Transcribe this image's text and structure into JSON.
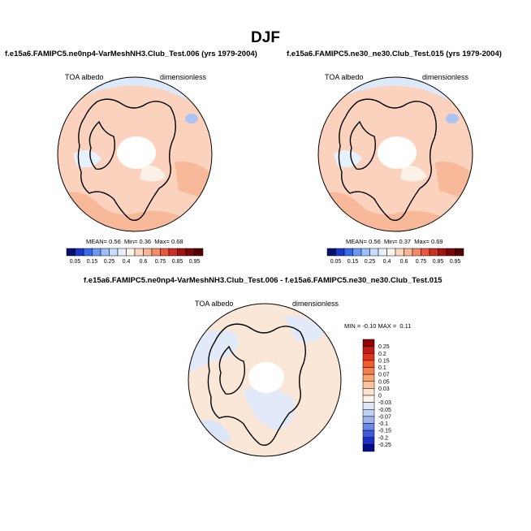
{
  "title": "DJF",
  "panels": [
    {
      "case_title": "f.e15a6.FAMIPC5.ne0np4-VarMeshNH3.Club_Test.006 (yrs 1979-2004)",
      "left_label": "TOA albedo",
      "right_label": "dimensionless",
      "stats": {
        "mean_label": "MEAN=",
        "mean": "0.56",
        "min_label": "Min=",
        "min": "0.36",
        "max_label": "Max=",
        "max": "0.68"
      }
    },
    {
      "case_title": "f.e15a6.FAMIPC5.ne30_ne30.Club_Test.015 (yrs 1979-2004)",
      "left_label": "TOA albedo",
      "right_label": "dimensionless",
      "stats": {
        "mean_label": "MEAN=",
        "mean": "0.56",
        "min_label": "Min=",
        "min": "0.37",
        "max_label": "Max=",
        "max": "0.69"
      }
    },
    {
      "case_title": "f.e15a6.FAMIPC5.ne0np4-VarMeshNH3.Club_Test.006 - f.e15a6.FAMIPC5.ne30_ne30.Club_Test.015",
      "left_label": "TOA albedo",
      "right_label": "dimensionless",
      "stats": {
        "min_label": "MIN =",
        "min": "-0.10",
        "max_label": "MAX =",
        "max": "0.11"
      }
    }
  ],
  "chart_data": [
    {
      "type": "heatmap",
      "projection": "north-polar-stereographic",
      "variable": "TOA albedo",
      "units": "dimensionless",
      "mean": 0.56,
      "min": 0.36,
      "max": 0.68,
      "colorbar": {
        "orientation": "horizontal",
        "labels": [
          "0.05",
          "0.15",
          "0.25",
          "0.4",
          "0.6",
          "0.75",
          "0.85",
          "0.95"
        ],
        "levels": [
          0.05,
          0.1,
          0.15,
          0.2,
          0.25,
          0.3,
          0.4,
          0.5,
          0.6,
          0.7,
          0.75,
          0.8,
          0.85,
          0.9,
          0.95
        ],
        "colors": [
          "#05106e",
          "#1a38c8",
          "#3a6aea",
          "#6a9af5",
          "#9cc1fa",
          "#c6dcfc",
          "#e7f0fd",
          "#fff4ec",
          "#fdd6bf",
          "#f9b595",
          "#f48a6a",
          "#e9573f",
          "#cf2f23",
          "#a4140f",
          "#7a0707",
          "#560000"
        ]
      }
    },
    {
      "type": "heatmap",
      "projection": "north-polar-stereographic",
      "variable": "TOA albedo",
      "units": "dimensionless",
      "mean": 0.56,
      "min": 0.37,
      "max": 0.69,
      "colorbar": {
        "orientation": "horizontal",
        "labels": [
          "0.05",
          "0.15",
          "0.25",
          "0.4",
          "0.6",
          "0.75",
          "0.85",
          "0.95"
        ],
        "levels": [
          0.05,
          0.1,
          0.15,
          0.2,
          0.25,
          0.3,
          0.4,
          0.5,
          0.6,
          0.7,
          0.75,
          0.8,
          0.85,
          0.9,
          0.95
        ],
        "colors": [
          "#05106e",
          "#1a38c8",
          "#3a6aea",
          "#6a9af5",
          "#9cc1fa",
          "#c6dcfc",
          "#e7f0fd",
          "#fff4ec",
          "#fdd6bf",
          "#f9b595",
          "#f48a6a",
          "#e9573f",
          "#cf2f23",
          "#a4140f",
          "#7a0707",
          "#560000"
        ]
      }
    },
    {
      "type": "heatmap",
      "projection": "north-polar-stereographic",
      "variable": "TOA albedo",
      "units": "dimensionless",
      "min": -0.1,
      "max": 0.11,
      "colorbar": {
        "orientation": "vertical",
        "labels": [
          "0.25",
          "0.2",
          "0.15",
          "0.1",
          "0.07",
          "0.05",
          "0.03",
          "0",
          "-0.03",
          "-0.05",
          "-0.07",
          "-0.1",
          "-0.15",
          "-0.2",
          "-0.25"
        ],
        "colors": [
          "#8b0000",
          "#c51b16",
          "#e0351c",
          "#f25b2b",
          "#f6804a",
          "#f9a36d",
          "#fbc3a0",
          "#fde3d0",
          "#fbf3ec",
          "#dfe6f8",
          "#c0d0f4",
          "#9bb3ef",
          "#6c87e8",
          "#3f5cdf",
          "#1c2fc9",
          "#060b8a"
        ]
      }
    }
  ]
}
